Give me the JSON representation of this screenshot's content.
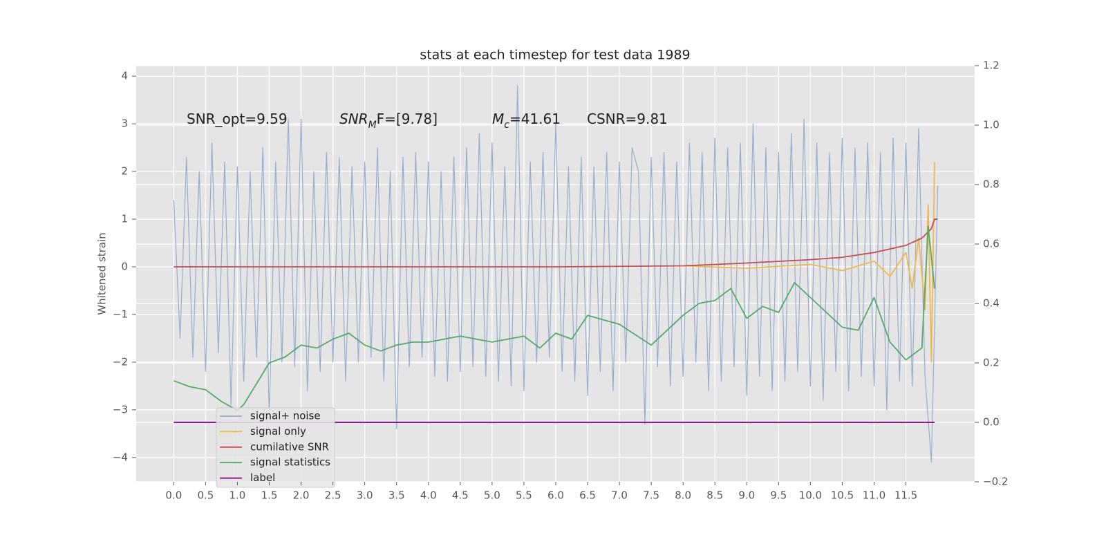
{
  "chart_data": {
    "type": "line",
    "title": "stats at each timestep for test data 1989",
    "y_label": "Whitened strain",
    "annotations": [
      {
        "text": "SNR_opt=9.59"
      },
      {
        "text": "SNR",
        "sub": "M",
        "after": "F=[9.78]"
      },
      {
        "text": "M",
        "sub": "c",
        "after": "=41.61"
      },
      {
        "text": "CSNR=9.81"
      }
    ],
    "xlim": [
      -0.59,
      12.58
    ],
    "ylim": [
      -4.51,
      4.22
    ],
    "y2lim": [
      -0.2,
      1.2
    ],
    "xticks": [
      {
        "value": 0,
        "label": "0.0"
      },
      0.5,
      {
        "value": 1,
        "label": "1.0"
      },
      1.5,
      {
        "value": 2,
        "label": "2.0"
      },
      2.5,
      {
        "value": 3,
        "label": "3.0"
      },
      3.5,
      {
        "value": 4,
        "label": "4.0"
      },
      4.5,
      {
        "value": 5,
        "label": "5.0"
      },
      5.5,
      {
        "value": 6,
        "label": "6.0"
      },
      6.5,
      {
        "value": 7,
        "label": "7.0"
      },
      7.5,
      {
        "value": 8,
        "label": "8.0"
      },
      8.5,
      {
        "value": 9,
        "label": "9.0"
      },
      9.5,
      {
        "value": 10,
        "label": "10.0"
      },
      10.5,
      {
        "value": 11,
        "label": "11.0"
      },
      11.5
    ],
    "yticks": [
      {
        "value": -4,
        "label": "−4"
      },
      {
        "value": -3,
        "label": "−3"
      },
      {
        "value": -2,
        "label": "−2"
      },
      {
        "value": -1,
        "label": "−1"
      },
      0,
      1,
      2,
      3,
      4
    ],
    "y2ticks": [
      {
        "value": -0.2,
        "label": "−0.2"
      },
      {
        "value": 0,
        "label": "0.0"
      },
      0.2,
      0.4,
      0.6,
      0.8,
      {
        "value": 1,
        "label": "1.0"
      },
      1.2
    ],
    "grid": true,
    "legend_loc": "lower left",
    "series": [
      {
        "name": "signal+ noise",
        "color": "#98abd0",
        "axis": "y",
        "x": [
          0,
          0.1,
          0.2,
          0.3,
          0.4,
          0.5,
          0.6,
          0.7,
          0.8,
          0.9,
          1,
          1.1,
          1.2,
          1.3,
          1.4,
          1.5,
          1.6,
          1.7,
          1.8,
          1.9,
          2,
          2.1,
          2.2,
          2.3,
          2.4,
          2.5,
          2.6,
          2.7,
          2.8,
          2.9,
          3,
          3.1,
          3.2,
          3.3,
          3.4,
          3.5,
          3.6,
          3.7,
          3.8,
          3.9,
          4,
          4.1,
          4.2,
          4.3,
          4.4,
          4.5,
          4.6,
          4.7,
          4.8,
          4.9,
          5,
          5.1,
          5.2,
          5.3,
          5.4,
          5.5,
          5.6,
          5.7,
          5.8,
          5.9,
          6,
          6.1,
          6.2,
          6.3,
          6.4,
          6.5,
          6.6,
          6.7,
          6.8,
          6.9,
          7,
          7.1,
          7.2,
          7.3,
          7.4,
          7.5,
          7.6,
          7.7,
          7.8,
          7.9,
          8,
          8.1,
          8.2,
          8.3,
          8.4,
          8.5,
          8.6,
          8.7,
          8.8,
          8.9,
          9,
          9.1,
          9.2,
          9.3,
          9.4,
          9.5,
          9.6,
          9.7,
          9.8,
          9.9,
          10,
          10.1,
          10.2,
          10.3,
          10.4,
          10.5,
          10.6,
          10.7,
          10.8,
          10.9,
          11,
          11.1,
          11.2,
          11.3,
          11.4,
          11.5,
          11.6,
          11.7,
          11.8,
          11.9,
          12
        ],
        "values": [
          1.4,
          -1.5,
          2.3,
          -1.9,
          2.0,
          -2.2,
          2.6,
          -1.8,
          2.2,
          -2.9,
          2.1,
          -2.4,
          2.0,
          -1.9,
          2.5,
          -3.1,
          2.2,
          -2.0,
          3.1,
          -2.1,
          3.1,
          -2.6,
          2.0,
          -2.2,
          2.4,
          -2.0,
          2.3,
          -2.4,
          2.1,
          -2.0,
          2.2,
          -1.9,
          2.5,
          -2.4,
          2.0,
          -3.4,
          2.3,
          -2.1,
          2.4,
          -1.9,
          2.2,
          -2.3,
          2.0,
          -2.4,
          2.3,
          -2.2,
          2.5,
          -2.1,
          2.8,
          -2.3,
          2.6,
          -2.4,
          2.1,
          -2.5,
          3.8,
          -2.6,
          2.2,
          -2.0,
          2.4,
          -1.9,
          3.0,
          -2.2,
          2.1,
          -2.4,
          2.3,
          -2.7,
          2.1,
          -2.2,
          2.4,
          -2.6,
          2.2,
          -2.0,
          2.5,
          2.0,
          -3.3,
          2.3,
          -2.1,
          2.4,
          -2.5,
          2.2,
          -2.3,
          2.6,
          -2.0,
          2.4,
          -2.6,
          2.7,
          -2.4,
          2.5,
          -2.1,
          2.6,
          -2.7,
          3.0,
          -2.3,
          2.5,
          -2.6,
          2.4,
          -2.4,
          2.8,
          -2.2,
          3.1,
          -2.5,
          2.6,
          -2.8,
          2.4,
          -2.2,
          2.7,
          -2.6,
          2.5,
          -2.3,
          2.6,
          -2.5,
          2.4,
          -3.0,
          2.7,
          -2.4,
          2.6,
          -2.5,
          2.9,
          -2.3,
          -4.1,
          1.7
        ]
      },
      {
        "name": "signal only",
        "color": "#eeb84f",
        "axis": "y",
        "x": [
          8,
          9,
          10,
          10.5,
          11,
          11.25,
          11.5,
          11.6,
          11.7,
          11.8,
          11.85,
          11.9,
          11.95
        ],
        "values": [
          0.02,
          -0.03,
          0.05,
          -0.08,
          0.12,
          -0.2,
          0.3,
          -0.45,
          0.6,
          -0.9,
          1.3,
          -2.0,
          2.2
        ]
      },
      {
        "name": "cumilative SNR",
        "color": "#c44e52",
        "axis": "y",
        "x": [
          0,
          6,
          8,
          9,
          10,
          10.5,
          11,
          11.5,
          11.75,
          11.9,
          11.95,
          12
        ],
        "values": [
          0,
          0,
          0.02,
          0.08,
          0.15,
          0.2,
          0.3,
          0.45,
          0.6,
          0.8,
          1.0,
          1.0
        ]
      },
      {
        "name": "signal statistics",
        "color": "#55a868",
        "axis": "y2",
        "x": [
          0,
          0.25,
          0.5,
          0.75,
          1,
          1.1,
          1.5,
          1.75,
          2,
          2.25,
          2.5,
          2.75,
          3,
          3.25,
          3.5,
          3.75,
          4,
          4.5,
          5,
          5.5,
          5.75,
          6,
          6.25,
          6.5,
          7,
          7.5,
          8,
          8.25,
          8.5,
          8.75,
          9,
          9.25,
          9.5,
          9.75,
          10,
          10.5,
          10.75,
          11,
          11.25,
          11.5,
          11.75,
          11.85,
          11.95
        ],
        "values": [
          0.14,
          0.12,
          0.11,
          0.07,
          0.04,
          0.06,
          0.2,
          0.22,
          0.26,
          0.25,
          0.28,
          0.3,
          0.26,
          0.24,
          0.26,
          0.27,
          0.27,
          0.29,
          0.27,
          0.29,
          0.25,
          0.3,
          0.28,
          0.36,
          0.33,
          0.26,
          0.36,
          0.4,
          0.41,
          0.45,
          0.35,
          0.39,
          0.37,
          0.47,
          0.42,
          0.32,
          0.31,
          0.42,
          0.27,
          0.21,
          0.25,
          0.66,
          0.45
        ]
      },
      {
        "name": "label",
        "color": "#800080",
        "axis": "y2",
        "x": [
          0,
          11.95
        ],
        "values": [
          0,
          0
        ]
      }
    ]
  }
}
